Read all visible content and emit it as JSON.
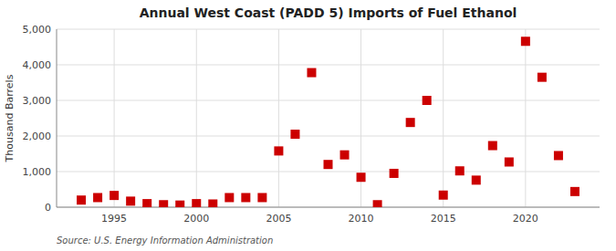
{
  "chart_data": {
    "type": "scatter",
    "title": "Annual West Coast (PADD 5) Imports of Fuel Ethanol",
    "ylabel": "Thousand Barrels",
    "source": "Source: U.S. Energy Information Administration",
    "x": [
      1993,
      1994,
      1995,
      1996,
      1997,
      1998,
      1999,
      2000,
      2001,
      2002,
      2003,
      2004,
      2005,
      2006,
      2007,
      2008,
      2009,
      2010,
      2011,
      2012,
      2013,
      2014,
      2015,
      2016,
      2017,
      2018,
      2019,
      2020,
      2021,
      2022,
      2023
    ],
    "values": [
      200,
      270,
      330,
      170,
      100,
      70,
      60,
      100,
      90,
      270,
      270,
      270,
      1580,
      2050,
      3780,
      1200,
      1470,
      840,
      70,
      950,
      2380,
      3000,
      340,
      1020,
      760,
      1730,
      1270,
      4660,
      3650,
      1450,
      440
    ],
    "color": "#cc0000",
    "marker": "square",
    "grid": true,
    "xlim": [
      1991.5,
      2024.5
    ],
    "xticks": [
      1995,
      2000,
      2005,
      2010,
      2015,
      2020
    ],
    "ylim": [
      0,
      5000
    ],
    "yticks": [
      0,
      {
        "value": 1000,
        "label": "1,000"
      },
      {
        "value": 2000,
        "label": "2,000"
      },
      {
        "value": 3000,
        "label": "3,000"
      },
      {
        "value": 4000,
        "label": "4,000"
      },
      {
        "value": 5000,
        "label": "5,000"
      }
    ]
  }
}
